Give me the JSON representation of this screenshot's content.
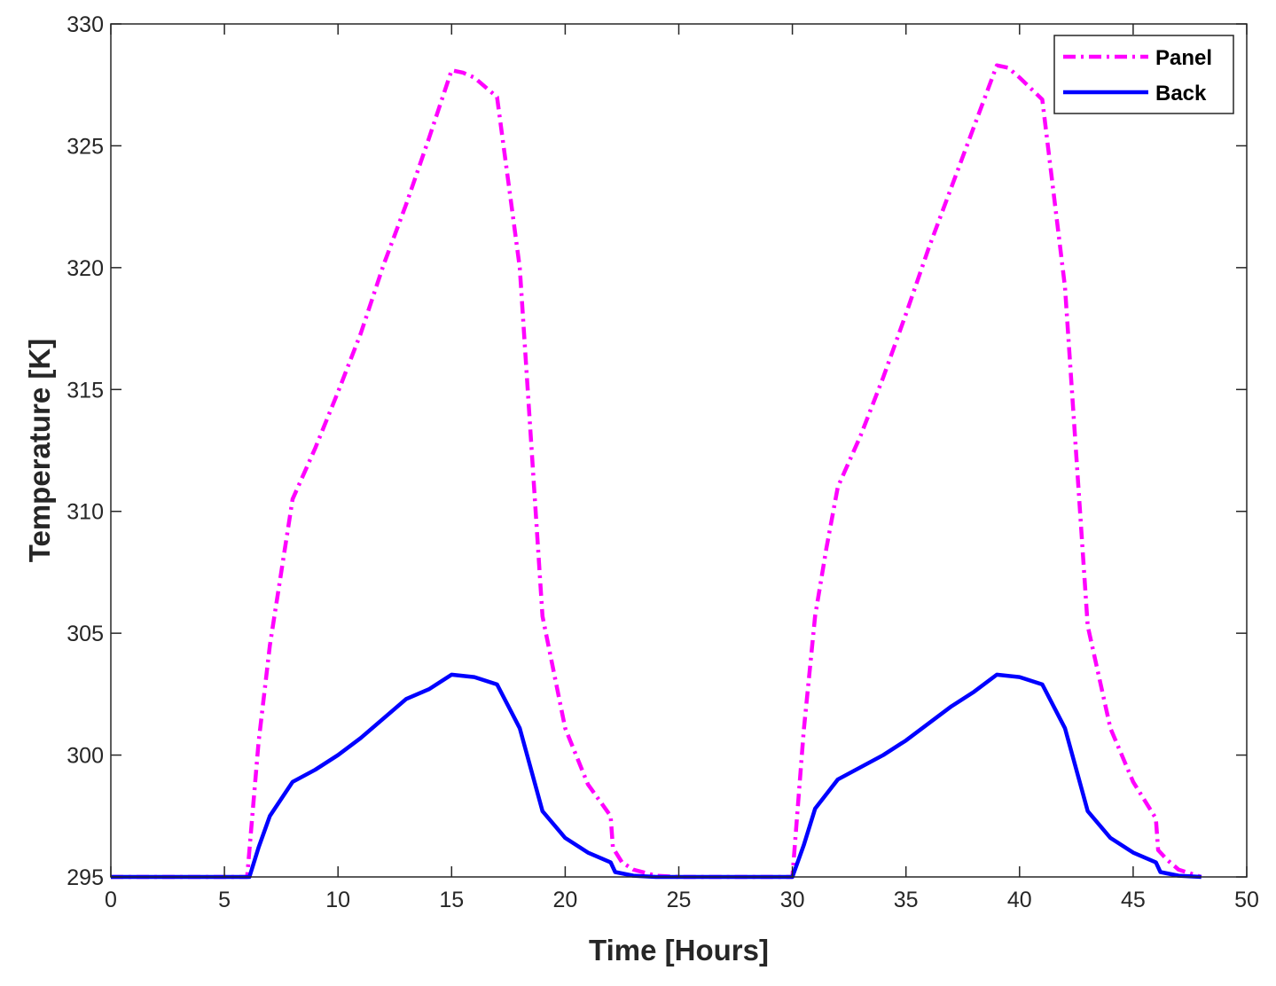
{
  "chart_data": {
    "type": "line",
    "xlabel": "Time [Hours]",
    "ylabel": "Temperature [K]",
    "xlim": [
      0,
      50
    ],
    "ylim": [
      295,
      330
    ],
    "xticks": [
      0,
      5,
      10,
      15,
      20,
      25,
      30,
      35,
      40,
      45,
      50
    ],
    "yticks": [
      295,
      300,
      305,
      310,
      315,
      320,
      325,
      330
    ],
    "grid": false,
    "legend_position": "top-right",
    "series": [
      {
        "name": "Panel",
        "color": "#ff00ff",
        "style": "dash-dot",
        "x": [
          0,
          6,
          6.5,
          7,
          7.5,
          8,
          9,
          10,
          11,
          12,
          13,
          14,
          15,
          15.5,
          16,
          17,
          18,
          19,
          20,
          21,
          22,
          22.1,
          22.5,
          23,
          24,
          25,
          26,
          27,
          28,
          29,
          30,
          30.5,
          31,
          31.5,
          32,
          33,
          34,
          35,
          36,
          37,
          38,
          39,
          39.5,
          40,
          41,
          42,
          43,
          44,
          45,
          46,
          46.1,
          46.5,
          47,
          48
        ],
        "y": [
          295,
          295,
          300.5,
          304.5,
          307.5,
          310.5,
          312.6,
          314.9,
          317.3,
          320.1,
          322.6,
          325.3,
          328.1,
          328,
          327.8,
          327,
          320,
          305.7,
          301.1,
          298.8,
          297.5,
          296.2,
          295.6,
          295.3,
          295.05,
          295,
          295,
          295,
          295,
          295,
          295,
          301,
          305.7,
          308.5,
          311,
          313.1,
          315.5,
          318.1,
          320.8,
          323.3,
          325.8,
          328.3,
          328.2,
          327.8,
          326.9,
          319.2,
          305.3,
          301.1,
          298.9,
          297.4,
          296.1,
          295.7,
          295.3,
          295
        ]
      },
      {
        "name": "Back",
        "color": "#0000ff",
        "style": "solid",
        "x": [
          0,
          6,
          6.1,
          6.5,
          7,
          8,
          9,
          10,
          11,
          12,
          13,
          14,
          15,
          16,
          17,
          18,
          19,
          20,
          21,
          22,
          22.2,
          23,
          24,
          25,
          26,
          27,
          28,
          29,
          30,
          30.5,
          31,
          32,
          33,
          34,
          35,
          36,
          37,
          38,
          39,
          40,
          41,
          42,
          43,
          44,
          45,
          46,
          46.2,
          47,
          48
        ],
        "y": [
          295,
          295,
          295,
          296.2,
          297.5,
          298.9,
          299.4,
          300,
          300.7,
          301.5,
          302.3,
          302.7,
          303.3,
          303.2,
          302.9,
          301.1,
          297.7,
          296.6,
          296,
          295.6,
          295.2,
          295.05,
          295,
          295,
          295,
          295,
          295,
          295,
          295,
          296.3,
          297.8,
          299,
          299.5,
          300,
          300.6,
          301.3,
          302,
          302.6,
          303.3,
          303.2,
          302.9,
          301.1,
          297.7,
          296.6,
          296,
          295.6,
          295.2,
          295.05,
          295
        ]
      }
    ]
  }
}
